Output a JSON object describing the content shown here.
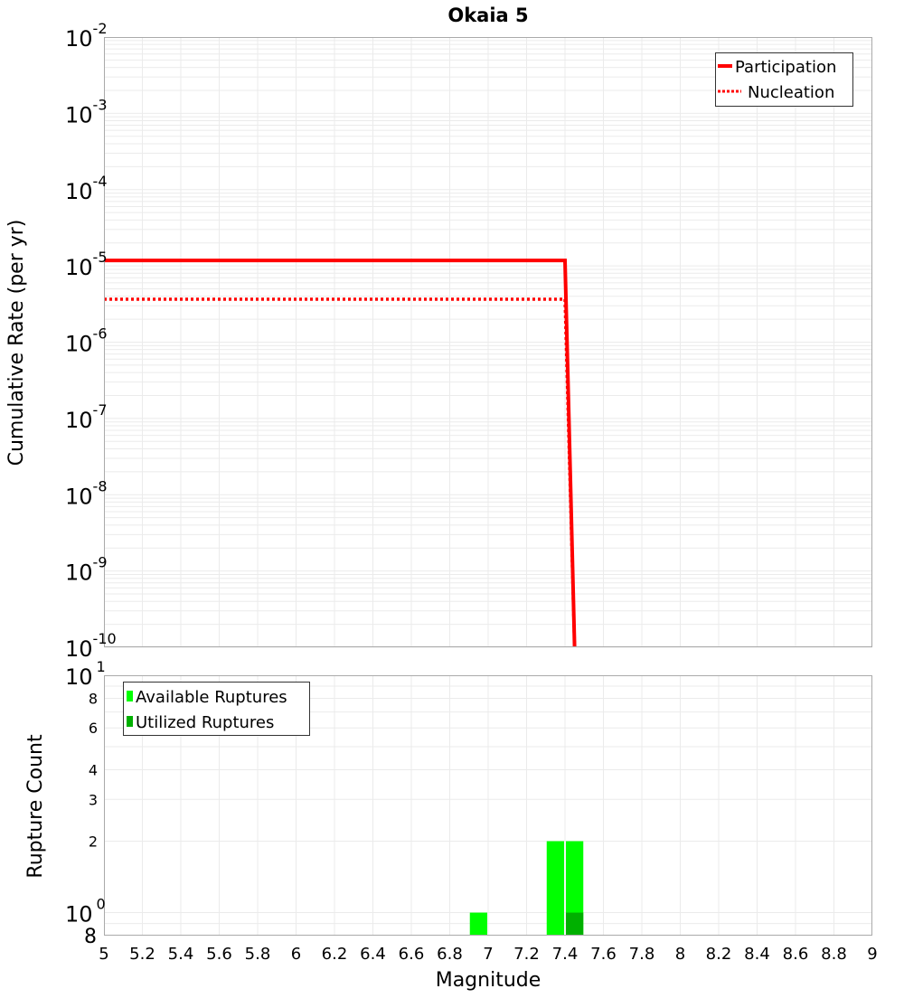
{
  "chart_data": [
    {
      "type": "line",
      "title": "Okaia 5",
      "xlabel": "Magnitude",
      "ylabel": "Cumulative Rate (per yr)",
      "yscale": "log",
      "xlim": [
        5,
        9
      ],
      "ylim": [
        1e-10,
        0.01
      ],
      "ytick_labels": [
        {
          "base": "10",
          "exp": "-2",
          "value": 0.01
        },
        {
          "base": "10",
          "exp": "-3",
          "value": 0.001
        },
        {
          "base": "10",
          "exp": "-4",
          "value": 0.0001
        },
        {
          "base": "10",
          "exp": "-5",
          "value": 1e-05
        },
        {
          "base": "10",
          "exp": "-6",
          "value": 1e-06
        },
        {
          "base": "10",
          "exp": "-7",
          "value": 1e-07
        },
        {
          "base": "10",
          "exp": "-8",
          "value": 1e-08
        },
        {
          "base": "10",
          "exp": "-9",
          "value": 1e-09
        },
        {
          "base": "10",
          "exp": "-10",
          "value": 1e-10
        }
      ],
      "grid": true,
      "legend_position": "top-right",
      "series": [
        {
          "name": "Participation",
          "style": "solid",
          "color": "#ff0000",
          "points": [
            [
              5.0,
              1.18e-05
            ],
            [
              7.4,
              1.18e-05
            ],
            [
              7.45,
              1e-10
            ]
          ]
        },
        {
          "name": "Nucleation",
          "style": "dotted",
          "color": "#ff0000",
          "points": [
            [
              5.0,
              3.66e-06
            ],
            [
              7.4,
              3.66e-06
            ],
            [
              7.45,
              1e-10
            ]
          ]
        }
      ]
    },
    {
      "type": "bar",
      "xlabel": "Magnitude",
      "ylabel": "Rupture Count",
      "yscale": "log",
      "xlim": [
        5,
        9
      ],
      "ylim": [
        0.8,
        10
      ],
      "xticks": [
        "5",
        "5.2",
        "5.4",
        "5.6",
        "5.8",
        "6",
        "6.2",
        "6.4",
        "6.6",
        "6.8",
        "7",
        "7.2",
        "7.4",
        "7.6",
        "7.8",
        "8",
        "8.2",
        "8.4",
        "8.6",
        "8.8",
        "9"
      ],
      "ytick_labels": [
        {
          "label": "10",
          "exp": "1",
          "value": 10,
          "major": true
        },
        {
          "label": "8",
          "value": 8
        },
        {
          "label": "6",
          "value": 6
        },
        {
          "label": "4",
          "value": 4
        },
        {
          "label": "3",
          "value": 3
        },
        {
          "label": "2",
          "value": 2
        },
        {
          "label": "10",
          "exp": "0",
          "value": 1,
          "major": true
        },
        {
          "label": "8",
          "value": 0.8,
          "major": true
        }
      ],
      "grid": true,
      "legend_position": "top-left",
      "bin_width": 0.1,
      "categories": [
        6.95,
        7.35,
        7.45
      ],
      "series": [
        {
          "name": "Available Ruptures",
          "color": "#00ff00",
          "values": [
            1,
            2,
            2
          ]
        },
        {
          "name": "Utilized Ruptures",
          "color": "#00b000",
          "values": [
            0,
            0,
            1
          ]
        }
      ]
    }
  ]
}
